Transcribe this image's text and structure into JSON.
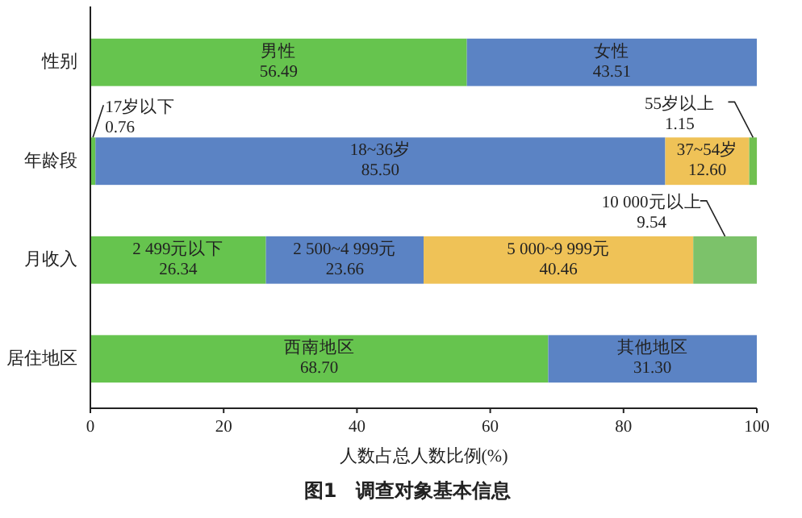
{
  "chart_data": {
    "type": "bar",
    "orientation": "horizontal",
    "stacked": true,
    "title": "图1　调查对象基本信息",
    "xlabel": "人数占总人数比例(%)",
    "categories": [
      "性别",
      "年龄段",
      "月收入",
      "居住地区"
    ],
    "series": [
      {
        "colors": [
          "#66c44e",
          "#66c44e",
          "#66c44e",
          "#66c44e"
        ],
        "values": [
          56.49,
          0.76,
          26.34,
          68.7
        ],
        "value_labels": [
          "男性\n56.49",
          "17岁以下\n0.76",
          "2 499元以下\n26.34",
          "西南地区\n68.70"
        ]
      },
      {
        "colors": [
          "#5b83c4",
          "#5b83c4",
          "#5b83c4",
          "#5b83c4"
        ],
        "values": [
          43.51,
          85.5,
          23.66,
          31.3
        ],
        "value_labels": [
          "女性\n43.51",
          "18~36岁\n85.50",
          "2 500~4 999元\n23.66",
          "其他地区\n31.30"
        ]
      },
      {
        "colors": [
          null,
          "#efc257",
          "#efc257",
          null
        ],
        "values": [
          null,
          12.6,
          40.46,
          null
        ],
        "value_labels": [
          null,
          "37~54岁\n12.60",
          "5 000~9 999元\n40.46",
          null
        ]
      },
      {
        "colors": [
          null,
          "#70c050",
          "#7cc26a",
          null
        ],
        "values": [
          null,
          1.15,
          9.54,
          null
        ],
        "value_labels": [
          null,
          "55岁以上\n1.15",
          "10 000元以上\n9.54",
          null
        ]
      }
    ],
    "xlim": [
      0,
      100
    ],
    "xticks": [
      0,
      20,
      40,
      60,
      80,
      100
    ],
    "grid": false
  }
}
